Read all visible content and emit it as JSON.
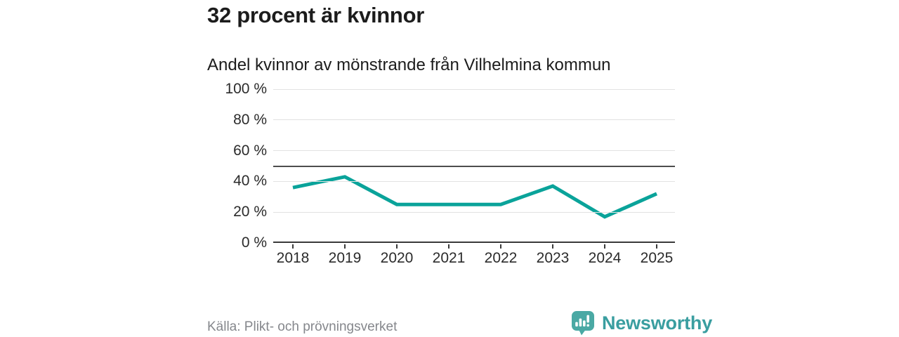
{
  "header": {
    "title": "32 procent är kvinnor",
    "subtitle": "Andel kvinnor av mönstrande från Vilhelmina kommun"
  },
  "chart_data": {
    "type": "line",
    "x": [
      "2018",
      "2019",
      "2020",
      "2021",
      "2022",
      "2023",
      "2024",
      "2025"
    ],
    "series": [
      {
        "name": "Andel kvinnor av mönstrande",
        "values": [
          36,
          43,
          25,
          25,
          25,
          37,
          17,
          32
        ]
      }
    ],
    "title": "Andel kvinnor av mönstrande från Vilhelmina kommun",
    "xlabel": "",
    "ylabel": "",
    "ylim": [
      0,
      100
    ],
    "yticks": [
      0,
      20,
      40,
      60,
      80,
      100
    ],
    "ytick_suffix": " %",
    "reference_line_y": 50,
    "grid": true,
    "legend": "none",
    "line_color": "#0aa39a"
  },
  "footer": {
    "source": "Källa: Plikt- och prövningsverket",
    "brand": "Newsworthy"
  },
  "colors": {
    "accent_line": "#0aa39a",
    "brand_teal": "#3a9ea0",
    "brand_bubble": "#4aa9a4",
    "grid": "#e2e2e2",
    "axis": "#3a3a3a",
    "reference_line": "#4d4d4d",
    "text": "#1c1c1c",
    "muted_text": "#85878c"
  }
}
